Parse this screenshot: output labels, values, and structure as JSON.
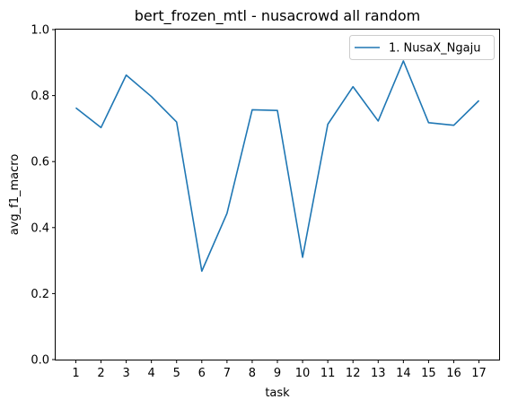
{
  "chart_data": {
    "type": "line",
    "title": "bert_frozen_mtl - nusacrowd all random",
    "xlabel": "task",
    "ylabel": "avg_f1_macro",
    "x": [
      1,
      2,
      3,
      4,
      5,
      6,
      7,
      8,
      9,
      10,
      11,
      12,
      13,
      14,
      15,
      16,
      17
    ],
    "xticks": [
      "1",
      "2",
      "3",
      "4",
      "5",
      "6",
      "7",
      "8",
      "9",
      "10",
      "11",
      "12",
      "13",
      "14",
      "15",
      "16",
      "17"
    ],
    "ylim": [
      0.0,
      1.0
    ],
    "yticks": [
      "0.0",
      "0.2",
      "0.4",
      "0.6",
      "0.8",
      "1.0"
    ],
    "series": [
      {
        "name": "1. NusaX_Ngaju",
        "color": "#1f77b4",
        "values": [
          0.763,
          0.703,
          0.862,
          0.797,
          0.72,
          0.268,
          0.443,
          0.757,
          0.755,
          0.31,
          0.713,
          0.827,
          0.723,
          0.905,
          0.718,
          0.71,
          0.785
        ]
      }
    ],
    "legend_position": "top-right",
    "grid": false
  }
}
